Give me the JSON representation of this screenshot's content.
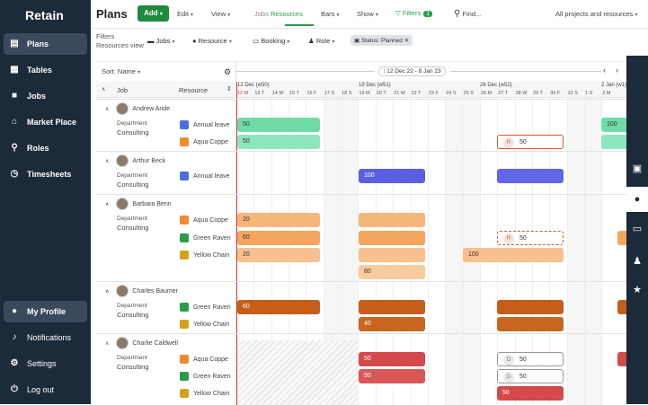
{
  "sidebar": {
    "logo": "Retain",
    "items": [
      {
        "label": "Plans",
        "icon": "plans-icon"
      },
      {
        "label": "Tables",
        "icon": "tables-icon"
      },
      {
        "label": "Jobs",
        "icon": "jobs-icon"
      },
      {
        "label": "Market Place",
        "icon": "market-place-icon"
      },
      {
        "label": "Roles",
        "icon": "roles-icon"
      },
      {
        "label": "Timesheets",
        "icon": "timesheets-icon"
      }
    ],
    "bottom": [
      {
        "label": "My Profile",
        "icon": "profile-icon"
      },
      {
        "label": "Notifications",
        "icon": "bell-icon"
      },
      {
        "label": "Settings",
        "icon": "gear-icon"
      },
      {
        "label": "Log out",
        "icon": "logout-icon"
      }
    ]
  },
  "topbar": {
    "title": "Plans",
    "add": "Add",
    "edit": "Edit",
    "view": "View",
    "seg_jobs": "Jobs",
    "seg_resources": "Resources",
    "bars": "Bars",
    "show": "Show",
    "filters": "Filters",
    "filters_count": "1",
    "find": "Find...",
    "scope": "All projects and resources"
  },
  "filterbar": {
    "label1": "Filters",
    "label2": "Resources view",
    "jobs": "Jobs",
    "resource": "Resource",
    "booking": "Booking",
    "role": "Role",
    "chip": "Status: Planned"
  },
  "grid": {
    "sort": "Sort: Name",
    "col_job": "Job",
    "col_resource": "Resource",
    "range": "12 Dec 22 - 8 Jan 23",
    "weeks": [
      "12 Dec (w50)",
      "19 Dec (w51)",
      "26 Dec (w52)",
      "2 Jan (w1)"
    ],
    "days": [
      "12 M",
      "13 T",
      "14 W",
      "15 T",
      "16 F",
      "17 S",
      "18 S",
      "19 M",
      "20 T",
      "21 W",
      "22 T",
      "23 F",
      "24 S",
      "25 S",
      "26 M",
      "27 T",
      "28 W",
      "29 T",
      "30 F",
      "31 S",
      "1 S",
      "2 M"
    ],
    "people": [
      {
        "name": "Andrew Ande",
        "dept": "Department",
        "dept_val": "Consulting",
        "resources": [
          "Annual leave",
          "Aqua Coppe"
        ]
      },
      {
        "name": "Arthur Beck",
        "dept": "Department",
        "dept_val": "Consulting",
        "resources": [
          "Annual leave"
        ]
      },
      {
        "name": "Barbara Benn",
        "dept": "Department",
        "dept_val": "Consulting",
        "resources": [
          "Aqua Coppe",
          "Green Raven",
          "Yellow Chain"
        ]
      },
      {
        "name": "Charles Baumer",
        "dept": "Department",
        "dept_val": "Consulting",
        "resources": [
          "Green Raven",
          "Yellow Chain"
        ]
      },
      {
        "name": "Charlie Caldwell",
        "dept": "Department",
        "dept_val": "Consulting",
        "resources": [
          "Aqua Coppe",
          "Green Raven",
          "Yellow Chain"
        ]
      }
    ],
    "bar_labels": {
      "v50": "50",
      "v100": "100",
      "v20": "20",
      "v60": "60",
      "v80": "80",
      "v40": "40",
      "tag_r": "R",
      "tag_d": "D"
    }
  },
  "colors": {
    "sidebar_bg": "#1c2b3a",
    "green": "#2a9d4a",
    "mint": "#6fdca8",
    "blue": "#5b5ee0",
    "peach": "#f5b67a",
    "rust": "#c65e1a",
    "red": "#d44a4a"
  }
}
